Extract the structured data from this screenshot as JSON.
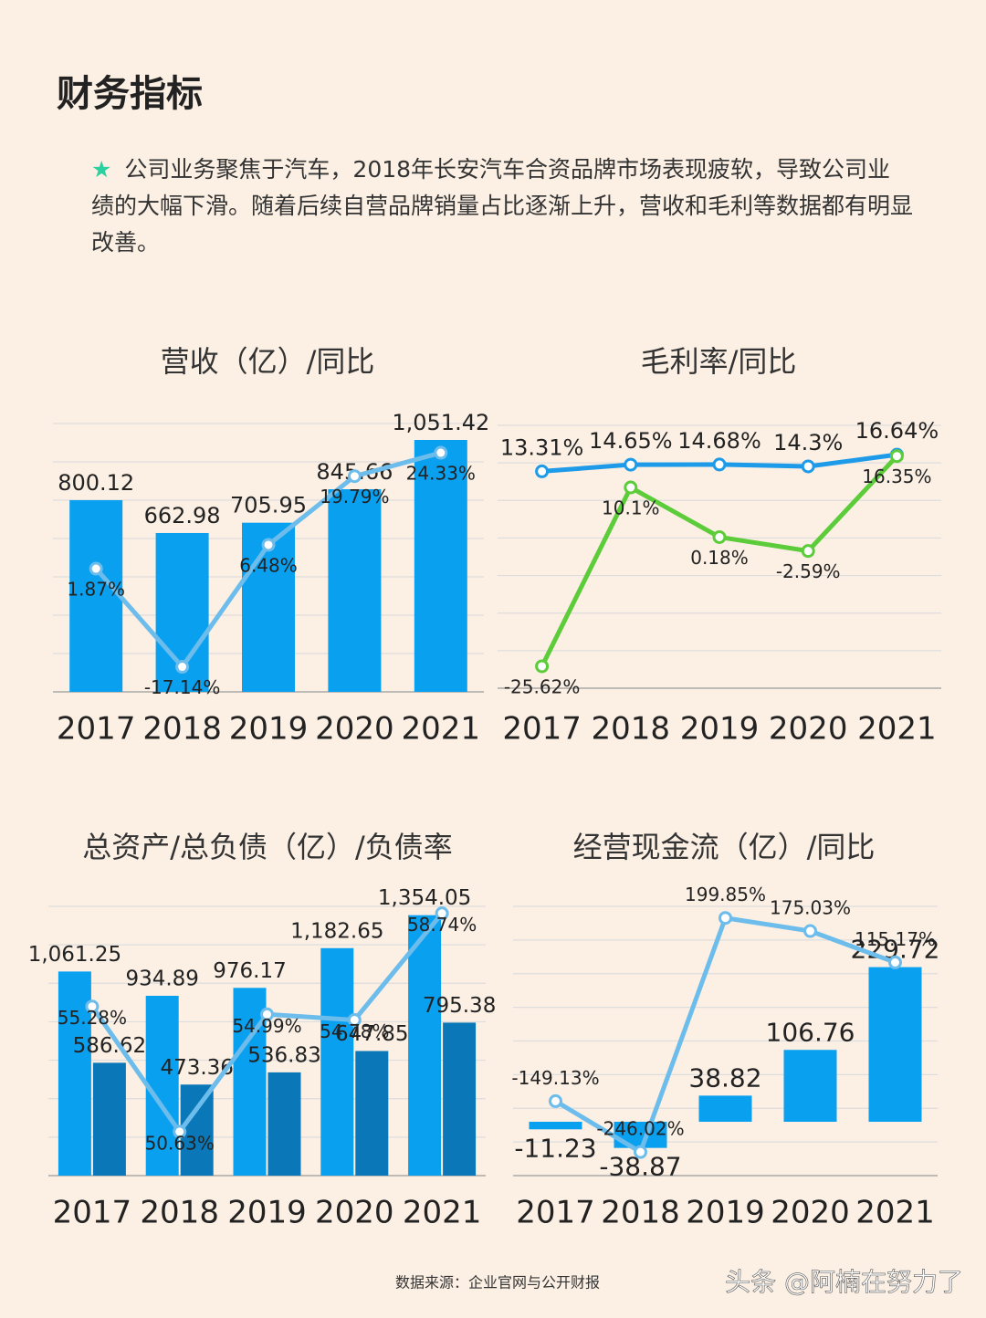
{
  "header": {
    "title": "财务指标"
  },
  "intro": {
    "marker": "★",
    "text": "公司业务聚焦于汽车，2018年长安汽车合资品牌市场表现疲软，导致公司业绩的大幅下滑。随着后续自营品牌销量占比逐渐上升，营收和毛利等数据都有明显改善。"
  },
  "chart_data": [
    {
      "type": "combo",
      "title": "营收（亿）/同比",
      "categories": [
        "2017",
        "2018",
        "2019",
        "2020",
        "2021"
      ],
      "ylim": [
        0,
        1120
      ],
      "yticks": [
        0,
        160,
        320,
        480,
        640,
        800,
        960,
        1120
      ],
      "y2lim": [
        -22,
        30
      ],
      "grid": true,
      "series": [
        {
          "type": "bar",
          "color": "#0aa0f0",
          "values": [
            800.12,
            662.98,
            705.95,
            845.66,
            1051.42
          ],
          "value_labels": [
            "800.12",
            "662.98",
            "705.95",
            "845.66",
            "1,051.42"
          ]
        },
        {
          "type": "line",
          "axis": "y2",
          "color": "#6cbcec",
          "values": [
            1.87,
            -17.14,
            6.48,
            19.79,
            24.33
          ],
          "value_labels": [
            "1.87%",
            "-17.14%",
            "6.48%",
            "19.79%",
            "24.33%"
          ]
        }
      ]
    },
    {
      "type": "line",
      "title": "毛利率/同比",
      "categories": [
        "2017",
        "2018",
        "2019",
        "2020",
        "2021"
      ],
      "ylim": [
        -30,
        22.5
      ],
      "yticks": [
        -30,
        -22.5,
        -15,
        -7.5,
        0,
        7.5,
        15,
        22.5
      ],
      "grid": true,
      "series": [
        {
          "type": "line",
          "color": "#1e9be8",
          "values": [
            13.31,
            14.65,
            14.68,
            14.3,
            16.64
          ],
          "value_labels": [
            "13.31%",
            "14.65%",
            "14.68%",
            "14.3%",
            "16.64%"
          ]
        },
        {
          "type": "line",
          "color": "#5ccc3a",
          "values": [
            -25.62,
            10.1,
            0.18,
            -2.59,
            16.35
          ],
          "value_labels": [
            "-25.62%",
            "10.1%",
            "0.18%",
            "-2.59%",
            "16.35%"
          ]
        }
      ]
    },
    {
      "type": "combo",
      "title": "总资产/总负债（亿）/负债率",
      "categories": [
        "2017",
        "2018",
        "2019",
        "2020",
        "2021"
      ],
      "ylim": [
        0,
        1400
      ],
      "yticks": [
        0,
        200,
        400,
        600,
        800,
        1000,
        1200,
        1400
      ],
      "y2lim": [
        49,
        59
      ],
      "grid": true,
      "series": [
        {
          "type": "bar",
          "color": "#0aa0f0",
          "values": [
            1061.25,
            934.89,
            976.17,
            1182.65,
            1354.05
          ],
          "value_labels": [
            "1,061.25",
            "934.89",
            "976.17",
            "1,182.65",
            "1,354.05"
          ]
        },
        {
          "type": "bar",
          "color": "#0a78b8",
          "values": [
            586.62,
            473.36,
            536.83,
            647.85,
            795.38
          ]
        },
        {
          "type": "line",
          "axis": "y2",
          "color": "#6cbcec",
          "values": [
            55.28,
            50.63,
            54.99,
            54.78,
            58.74
          ],
          "value_labels": [
            "55.28%",
            "50.63%",
            "54.99%",
            "54.78%",
            "58.74%"
          ]
        }
      ]
    },
    {
      "type": "combo",
      "title": "经营现金流（亿）/同比",
      "categories": [
        "2017",
        "2018",
        "2019",
        "2020",
        "2021"
      ],
      "ylim": [
        -80,
        320
      ],
      "yticks": [
        -80,
        -30,
        20,
        70,
        120,
        170,
        220,
        270,
        320
      ],
      "y2lim": [
        -291,
        222
      ],
      "grid": true,
      "series": [
        {
          "type": "bar",
          "color": "#0aa0f0",
          "values": [
            -11.23,
            -38.87,
            38.82,
            106.76,
            229.72
          ]
        },
        {
          "type": "line",
          "axis": "y2",
          "color": "#6cbcec",
          "values": [
            -149.13,
            -246.02,
            199.85,
            175.03,
            115.17
          ],
          "value_labels": [
            "-149.13%",
            "-246.02%",
            "199.85%",
            "175.03%",
            "115.17%"
          ]
        }
      ]
    }
  ],
  "footer": {
    "source": "数据来源：企业官网与公开财报",
    "watermark": "头条 @阿楠在努力了"
  }
}
